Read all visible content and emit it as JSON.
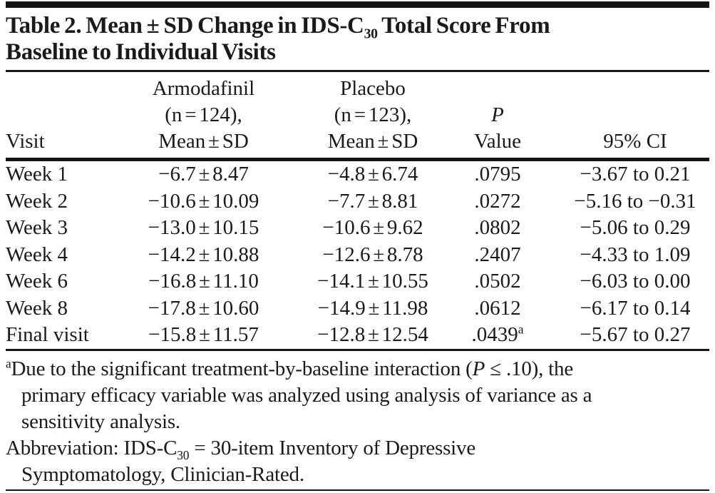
{
  "page": {
    "background": "#ffffff",
    "text_color": "#1a1a1a",
    "rule_color": "#161616"
  },
  "title": {
    "line1_pre": "Table 2. Mean ± SD Change in IDS-C",
    "line1_sub": "30",
    "line1_post": " Total Score From",
    "line2": "Baseline to Individual Visits"
  },
  "table": {
    "columns": {
      "visit": {
        "label": "Visit"
      },
      "armodafinil": {
        "line1": "Armodafinil",
        "line2": "(n = 124),",
        "line3": "Mean ± SD"
      },
      "placebo": {
        "line1": "Placebo",
        "line2": "(n = 123),",
        "line3": "Mean ± SD"
      },
      "p_value": {
        "line1": "P",
        "line2": "Value"
      },
      "ci": {
        "label": "95% CI"
      }
    },
    "rows": [
      {
        "visit": "Week 1",
        "armodafinil": "−6.7 ± 8.47",
        "placebo": "−4.8 ± 6.74",
        "p_value": ".0795",
        "ci": "−3.67 to 0.21"
      },
      {
        "visit": "Week 2",
        "armodafinil": "−10.6 ± 10.09",
        "placebo": "−7.7 ± 8.81",
        "p_value": ".0272",
        "ci": "−5.16 to −0.31"
      },
      {
        "visit": "Week 3",
        "armodafinil": "−13.0 ± 10.15",
        "placebo": "−10.6 ± 9.62",
        "p_value": ".0802",
        "ci": "−5.06 to 0.29"
      },
      {
        "visit": "Week 4",
        "armodafinil": "−14.2 ± 10.88",
        "placebo": "−12.6 ± 8.78",
        "p_value": ".2407",
        "ci": "−4.33 to 1.09"
      },
      {
        "visit": "Week 6",
        "armodafinil": "−16.8 ± 11.10",
        "placebo": "−14.1 ± 10.55",
        "p_value": ".0502",
        "ci": "−6.03 to 0.00"
      },
      {
        "visit": "Week 8",
        "armodafinil": "−17.8 ± 10.60",
        "placebo": "−14.9 ± 11.98",
        "p_value": ".0612",
        "ci": "−6.17 to 0.14"
      },
      {
        "visit": "Final visit",
        "armodafinil": "−15.8 ± 11.57",
        "placebo": "−12.8 ± 12.54",
        "p_value": ".0439",
        "p_sup": "a",
        "ci": "−5.67 to 0.27"
      }
    ]
  },
  "footnote_a": {
    "marker": "a",
    "lines": [
      {
        "pre": "Due to the significant treatment-by-baseline interaction (",
        "italic": "P",
        "post": " ≤ .10), the"
      },
      {
        "text": "primary efficacy variable was analyzed using analysis of variance as a"
      },
      {
        "text": "sensitivity analysis."
      }
    ]
  },
  "abbreviation_note": {
    "lines": [
      {
        "pre": "Abbreviation: IDS-C",
        "sub": "30",
        "post": " = 30-item Inventory of Depressive"
      },
      {
        "text": "Symptomatology, Clinician-Rated."
      }
    ]
  }
}
